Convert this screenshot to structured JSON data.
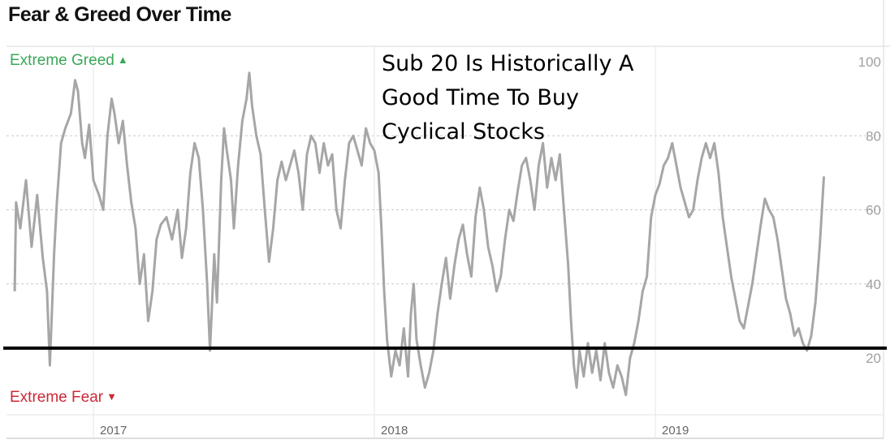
{
  "title": "Fear & Greed Over Time",
  "annotation": [
    "Sub 20 Is Historically A",
    "Good Time To Buy",
    "Cyclical Stocks"
  ],
  "labels": {
    "extreme_greed": "Extreme Greed",
    "extreme_fear": "Extreme Fear"
  },
  "colors": {
    "greed": "#3aa757",
    "fear": "#cc2936",
    "series": "#a6a6a6",
    "threshold": "#000000"
  },
  "chart_data": {
    "type": "line",
    "title": "Fear & Greed Over Time",
    "xlabel": "",
    "ylabel": "",
    "ylim": [
      0,
      100
    ],
    "yticks": [
      20,
      40,
      60,
      80,
      100
    ],
    "xlim": [
      2016.72,
      2019.8
    ],
    "xticks": [
      {
        "value": 2017,
        "label": "2017"
      },
      {
        "value": 2018,
        "label": "2018"
      },
      {
        "value": 2019,
        "label": "2019"
      }
    ],
    "grid": true,
    "threshold": 22,
    "series": [
      {
        "points": [
          [
            2016.72,
            38
          ],
          [
            2016.725,
            62
          ],
          [
            2016.74,
            55
          ],
          [
            2016.76,
            68
          ],
          [
            2016.78,
            50
          ],
          [
            2016.8,
            64
          ],
          [
            2016.82,
            47
          ],
          [
            2016.835,
            38
          ],
          [
            2016.845,
            18
          ],
          [
            2016.86,
            48
          ],
          [
            2016.87,
            62
          ],
          [
            2016.885,
            78
          ],
          [
            2016.9,
            82
          ],
          [
            2016.92,
            86
          ],
          [
            2016.935,
            95
          ],
          [
            2016.945,
            92
          ],
          [
            2016.96,
            78
          ],
          [
            2016.97,
            74
          ],
          [
            2016.985,
            83
          ],
          [
            2017.0,
            68
          ],
          [
            2017.02,
            64
          ],
          [
            2017.035,
            60
          ],
          [
            2017.05,
            80
          ],
          [
            2017.065,
            90
          ],
          [
            2017.075,
            86
          ],
          [
            2017.09,
            78
          ],
          [
            2017.105,
            84
          ],
          [
            2017.12,
            72
          ],
          [
            2017.135,
            62
          ],
          [
            2017.15,
            55
          ],
          [
            2017.165,
            40
          ],
          [
            2017.18,
            48
          ],
          [
            2017.195,
            30
          ],
          [
            2017.21,
            38
          ],
          [
            2017.225,
            52
          ],
          [
            2017.24,
            56
          ],
          [
            2017.26,
            58
          ],
          [
            2017.28,
            52
          ],
          [
            2017.3,
            60
          ],
          [
            2017.315,
            47
          ],
          [
            2017.33,
            55
          ],
          [
            2017.345,
            70
          ],
          [
            2017.36,
            78
          ],
          [
            2017.375,
            74
          ],
          [
            2017.39,
            60
          ],
          [
            2017.405,
            40
          ],
          [
            2017.415,
            22
          ],
          [
            2017.43,
            48
          ],
          [
            2017.44,
            35
          ],
          [
            2017.455,
            68
          ],
          [
            2017.465,
            82
          ],
          [
            2017.475,
            76
          ],
          [
            2017.49,
            68
          ],
          [
            2017.5,
            55
          ],
          [
            2017.515,
            72
          ],
          [
            2017.53,
            84
          ],
          [
            2017.545,
            90
          ],
          [
            2017.555,
            97
          ],
          [
            2017.565,
            88
          ],
          [
            2017.58,
            80
          ],
          [
            2017.595,
            75
          ],
          [
            2017.61,
            60
          ],
          [
            2017.625,
            46
          ],
          [
            2017.64,
            55
          ],
          [
            2017.655,
            68
          ],
          [
            2017.67,
            73
          ],
          [
            2017.685,
            68
          ],
          [
            2017.7,
            72
          ],
          [
            2017.715,
            76
          ],
          [
            2017.73,
            70
          ],
          [
            2017.745,
            60
          ],
          [
            2017.76,
            75
          ],
          [
            2017.775,
            80
          ],
          [
            2017.79,
            78
          ],
          [
            2017.805,
            70
          ],
          [
            2017.82,
            78
          ],
          [
            2017.835,
            72
          ],
          [
            2017.85,
            75
          ],
          [
            2017.865,
            60
          ],
          [
            2017.88,
            55
          ],
          [
            2017.895,
            68
          ],
          [
            2017.91,
            78
          ],
          [
            2017.925,
            80
          ],
          [
            2017.94,
            76
          ],
          [
            2017.955,
            72
          ],
          [
            2017.97,
            82
          ],
          [
            2017.985,
            78
          ],
          [
            2018.0,
            76
          ],
          [
            2018.015,
            70
          ],
          [
            2018.025,
            55
          ],
          [
            2018.035,
            38
          ],
          [
            2018.045,
            25
          ],
          [
            2018.06,
            15
          ],
          [
            2018.075,
            22
          ],
          [
            2018.09,
            18
          ],
          [
            2018.105,
            28
          ],
          [
            2018.12,
            15
          ],
          [
            2018.13,
            32
          ],
          [
            2018.14,
            40
          ],
          [
            2018.15,
            25
          ],
          [
            2018.165,
            18
          ],
          [
            2018.18,
            12
          ],
          [
            2018.195,
            16
          ],
          [
            2018.21,
            22
          ],
          [
            2018.225,
            32
          ],
          [
            2018.24,
            40
          ],
          [
            2018.255,
            47
          ],
          [
            2018.27,
            36
          ],
          [
            2018.285,
            45
          ],
          [
            2018.3,
            52
          ],
          [
            2018.315,
            56
          ],
          [
            2018.33,
            48
          ],
          [
            2018.345,
            42
          ],
          [
            2018.36,
            58
          ],
          [
            2018.375,
            66
          ],
          [
            2018.39,
            60
          ],
          [
            2018.405,
            50
          ],
          [
            2018.42,
            45
          ],
          [
            2018.435,
            38
          ],
          [
            2018.45,
            42
          ],
          [
            2018.465,
            52
          ],
          [
            2018.48,
            60
          ],
          [
            2018.495,
            57
          ],
          [
            2018.51,
            65
          ],
          [
            2018.525,
            72
          ],
          [
            2018.54,
            74
          ],
          [
            2018.555,
            68
          ],
          [
            2018.57,
            60
          ],
          [
            2018.585,
            72
          ],
          [
            2018.6,
            78
          ],
          [
            2018.615,
            66
          ],
          [
            2018.63,
            74
          ],
          [
            2018.645,
            68
          ],
          [
            2018.66,
            75
          ],
          [
            2018.675,
            60
          ],
          [
            2018.69,
            45
          ],
          [
            2018.7,
            30
          ],
          [
            2018.71,
            18
          ],
          [
            2018.72,
            12
          ],
          [
            2018.73,
            22
          ],
          [
            2018.745,
            15
          ],
          [
            2018.76,
            24
          ],
          [
            2018.775,
            16
          ],
          [
            2018.79,
            22
          ],
          [
            2018.805,
            14
          ],
          [
            2018.82,
            24
          ],
          [
            2018.835,
            16
          ],
          [
            2018.85,
            12
          ],
          [
            2018.865,
            18
          ],
          [
            2018.88,
            15
          ],
          [
            2018.895,
            10
          ],
          [
            2018.91,
            20
          ],
          [
            2018.925,
            24
          ],
          [
            2018.94,
            30
          ],
          [
            2018.955,
            38
          ],
          [
            2018.97,
            42
          ],
          [
            2018.985,
            58
          ],
          [
            2019.0,
            64
          ],
          [
            2019.015,
            67
          ],
          [
            2019.03,
            72
          ],
          [
            2019.045,
            74
          ],
          [
            2019.06,
            78
          ],
          [
            2019.075,
            72
          ],
          [
            2019.09,
            66
          ],
          [
            2019.105,
            62
          ],
          [
            2019.12,
            58
          ],
          [
            2019.135,
            60
          ],
          [
            2019.15,
            68
          ],
          [
            2019.165,
            74
          ],
          [
            2019.18,
            78
          ],
          [
            2019.195,
            74
          ],
          [
            2019.21,
            78
          ],
          [
            2019.225,
            70
          ],
          [
            2019.24,
            58
          ],
          [
            2019.255,
            50
          ],
          [
            2019.27,
            42
          ],
          [
            2019.285,
            36
          ],
          [
            2019.3,
            30
          ],
          [
            2019.315,
            28
          ],
          [
            2019.33,
            34
          ],
          [
            2019.345,
            40
          ],
          [
            2019.36,
            48
          ],
          [
            2019.375,
            56
          ],
          [
            2019.39,
            63
          ],
          [
            2019.405,
            60
          ],
          [
            2019.42,
            58
          ],
          [
            2019.435,
            52
          ],
          [
            2019.45,
            44
          ],
          [
            2019.465,
            36
          ],
          [
            2019.48,
            32
          ],
          [
            2019.495,
            26
          ],
          [
            2019.51,
            28
          ],
          [
            2019.525,
            24
          ],
          [
            2019.54,
            22
          ],
          [
            2019.555,
            26
          ],
          [
            2019.57,
            35
          ],
          [
            2019.585,
            50
          ],
          [
            2019.6,
            69
          ]
        ]
      }
    ]
  }
}
